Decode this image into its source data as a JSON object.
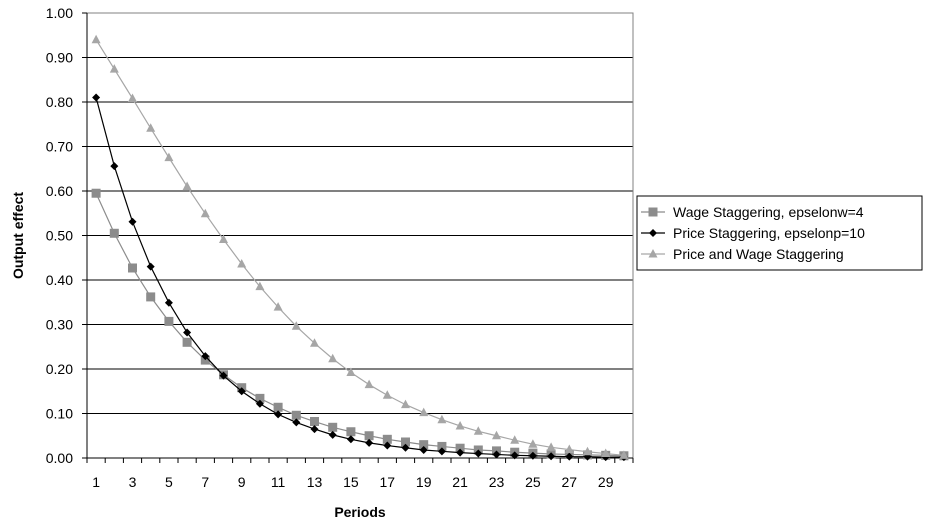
{
  "chart_data": {
    "type": "line",
    "title": "",
    "xlabel": "Periods",
    "ylabel": "Output effect",
    "ylim": [
      0,
      1
    ],
    "xlim": [
      1,
      30
    ],
    "grid": "horizontal",
    "legend_position": "right",
    "x": [
      1,
      2,
      3,
      4,
      5,
      6,
      7,
      8,
      9,
      10,
      11,
      12,
      13,
      14,
      15,
      16,
      17,
      18,
      19,
      20,
      21,
      22,
      23,
      24,
      25,
      26,
      27,
      28,
      29,
      30
    ],
    "x_tick_labels": [
      "1",
      "3",
      "5",
      "7",
      "9",
      "11",
      "13",
      "15",
      "17",
      "19",
      "21",
      "23",
      "25",
      "27",
      "29"
    ],
    "y_tick_labels": [
      "0.00",
      "0.10",
      "0.20",
      "0.30",
      "0.40",
      "0.50",
      "0.60",
      "0.70",
      "0.80",
      "0.90",
      "1.00"
    ],
    "series": [
      {
        "name": "Wage Staggering, epselonw=4",
        "color": "#8c8c8c",
        "marker": "square",
        "values": [
          0.595,
          0.505,
          0.427,
          0.362,
          0.307,
          0.26,
          0.22,
          0.187,
          0.158,
          0.134,
          0.114,
          0.096,
          0.082,
          0.069,
          0.059,
          0.05,
          0.042,
          0.036,
          0.03,
          0.026,
          0.022,
          0.018,
          0.016,
          0.013,
          0.011,
          0.009,
          0.008,
          0.007,
          0.006,
          0.005
        ]
      },
      {
        "name": "Price Staggering, epselonp=10",
        "color": "#000000",
        "marker": "diamond",
        "values": [
          0.81,
          0.656,
          0.531,
          0.43,
          0.349,
          0.282,
          0.229,
          0.185,
          0.15,
          0.122,
          0.098,
          0.08,
          0.065,
          0.052,
          0.042,
          0.034,
          0.028,
          0.023,
          0.018,
          0.015,
          0.012,
          0.01,
          0.008,
          0.006,
          0.005,
          0.004,
          0.003,
          0.003,
          0.002,
          0.002
        ]
      },
      {
        "name": "Price and Wage Staggering",
        "color": "#a6a6a6",
        "marker": "triangle",
        "values": [
          0.94,
          0.874,
          0.808,
          0.741,
          0.675,
          0.61,
          0.549,
          0.491,
          0.436,
          0.385,
          0.339,
          0.296,
          0.258,
          0.223,
          0.192,
          0.165,
          0.141,
          0.12,
          0.102,
          0.086,
          0.072,
          0.06,
          0.05,
          0.04,
          0.031,
          0.024,
          0.019,
          0.014,
          0.01,
          0.006
        ]
      }
    ]
  }
}
